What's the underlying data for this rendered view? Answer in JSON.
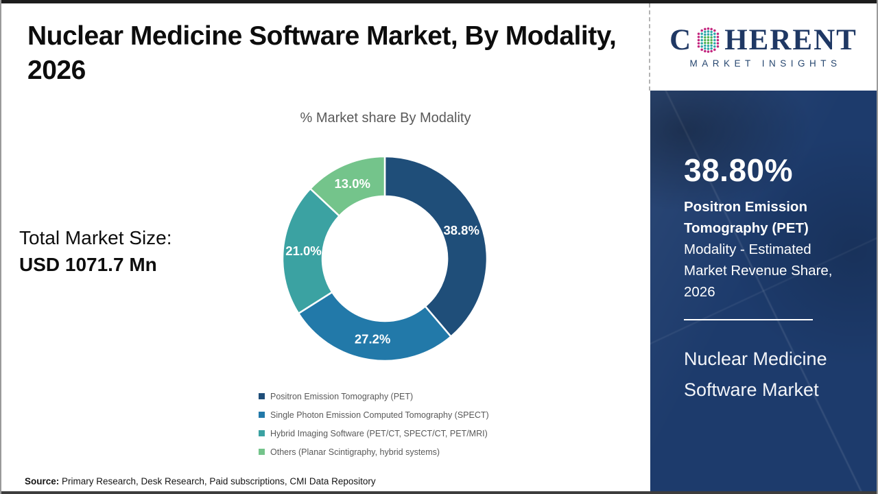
{
  "header": {
    "title_line1": "Nuclear Medicine Software Market, By Modality,",
    "title_line2": "2026"
  },
  "logo": {
    "prefix": "C",
    "suffix": "HERENT",
    "subtext": "MARKET INSIGHTS",
    "brand_navy": "#1F3864",
    "globe_colors": {
      "outer": "#C2267E",
      "mid": "#2FA8A8",
      "inner": "#56B456"
    }
  },
  "left_panel": {
    "market_size_label": "Total Market Size:",
    "market_size_value": "USD 1071.7 Mn"
  },
  "chart": {
    "subtitle": "% Market share By Modality"
  },
  "chart_data": {
    "type": "pie",
    "donut": true,
    "title": "% Market share By Modality",
    "categories": [
      "Positron Emission Tomography (PET)",
      "Single Photon Emission Computed Tomography (SPECT)",
      "Hybrid Imaging Software (PET/CT, SPECT/CT, PET/MRI)",
      "Others (Planar Scintigraphy, hybrid systems)"
    ],
    "values": [
      38.8,
      27.2,
      21.0,
      13.0
    ],
    "data_labels": [
      "38.8%",
      "27.2%",
      "21.0%",
      "13.0%"
    ],
    "colors": [
      "#1F4E79",
      "#2279A9",
      "#3BA2A2",
      "#74C48B"
    ],
    "start_angle_deg": 0,
    "direction": "clockwise",
    "legend_position": "bottom"
  },
  "sidebar": {
    "highlight_value": "38.80%",
    "highlight_bold": "Positron Emission Tomography (PET)",
    "highlight_rest": " Modality - Estimated Market Revenue Share, 2026",
    "market_name": "Nuclear Medicine Software Market",
    "panel_navy": "#1d3b6c"
  },
  "footer": {
    "source_label": "Source:",
    "source_text": " Primary Research, Desk Research, Paid subscriptions, CMI Data Repository"
  }
}
